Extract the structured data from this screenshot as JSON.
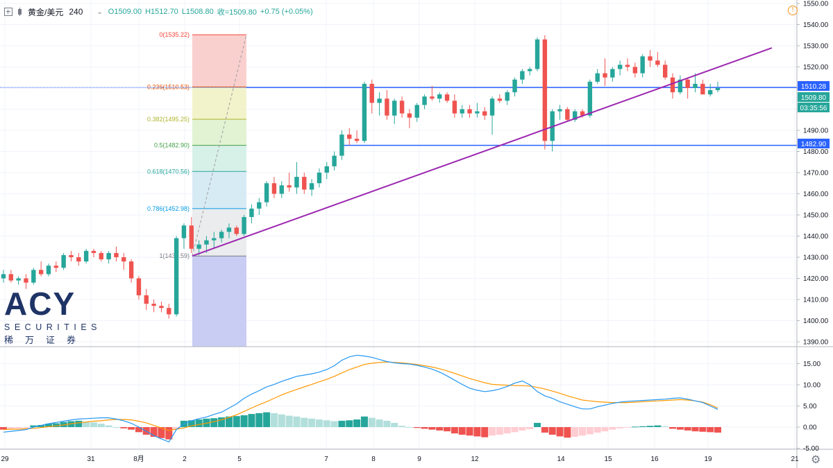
{
  "header": {
    "symbol": "黄金/美元",
    "interval": "240",
    "open": "O1509.00",
    "high": "H1512.70",
    "low": "L1508.80",
    "close": "收=1509.80",
    "change": "+0.75 (+0.05%)"
  },
  "price_axis": {
    "ticks": [
      "1550.00",
      "1540.00",
      "1530.00",
      "1520.00",
      "1510.00",
      "1500.00",
      "1490.00",
      "1480.00",
      "1470.00",
      "1460.00",
      "1450.00",
      "1440.00",
      "1430.00",
      "1420.00",
      "1410.00",
      "1400.00",
      "1390.00"
    ],
    "labels": [
      {
        "text": "1510.28",
        "color": "#2962ff"
      },
      {
        "text": "1509.80",
        "color": "#26a69a"
      },
      {
        "text": "03:35:56",
        "color": "#26a69a"
      },
      {
        "text": "1482.90",
        "color": "#2962ff"
      }
    ]
  },
  "macd_axis": {
    "ticks": [
      "15.00",
      "10.00",
      "5.00",
      "0.00",
      "-5.00"
    ]
  },
  "time_axis": {
    "ticks": [
      "29",
      "31",
      "8月",
      "2",
      "5",
      "7",
      "8",
      "9",
      "12",
      "14",
      "15",
      "16",
      "19",
      "21"
    ]
  },
  "fibonacci": {
    "levels": [
      {
        "label": "0(1535.22)",
        "price": 1535.22,
        "color": "#f44336"
      },
      {
        "label": "0.236(1510.53)",
        "price": 1510.53,
        "color": "#e65100"
      },
      {
        "label": "0.382(1495.25)",
        "price": 1495.25,
        "color": "#afb42b"
      },
      {
        "label": "0.5(1482.90)",
        "price": 1482.9,
        "color": "#43a047"
      },
      {
        "label": "0.618(1470.56)",
        "price": 1470.56,
        "color": "#26a69a"
      },
      {
        "label": "0.786(1452.98)",
        "price": 1452.98,
        "color": "#039be5"
      },
      {
        "label": "1(1430.59)",
        "price": 1430.59,
        "color": "#787b86"
      }
    ]
  },
  "horizontal_lines": [
    1510.28,
    1482.9
  ],
  "colors": {
    "up": "#26a69a",
    "down": "#ef5350",
    "trendline": "#9c27b0",
    "hline": "#2962ff",
    "macd": "#2196f3",
    "signal": "#ff9800"
  },
  "logo": {
    "brand": "ACY",
    "line1": "SECURITIES",
    "line2": "稀万证券"
  },
  "icons": {
    "warning": "warning-icon",
    "settings": "gear-icon"
  },
  "chart_data": {
    "type": "candlestick",
    "candles": [
      [
        1420,
        1424,
        1418,
        1422
      ],
      [
        1422,
        1424,
        1418,
        1419
      ],
      [
        1419,
        1421,
        1417,
        1420
      ],
      [
        1420,
        1422,
        1415,
        1418
      ],
      [
        1418,
        1425,
        1417,
        1424
      ],
      [
        1424,
        1428,
        1421,
        1422
      ],
      [
        1422,
        1427,
        1421,
        1426
      ],
      [
        1426,
        1428,
        1423,
        1425
      ],
      [
        1425,
        1432,
        1424,
        1431
      ],
      [
        1431,
        1433,
        1428,
        1430
      ],
      [
        1430,
        1432,
        1426,
        1428
      ],
      [
        1428,
        1434,
        1427,
        1433
      ],
      [
        1433,
        1434,
        1430,
        1432
      ],
      [
        1432,
        1433,
        1428,
        1429
      ],
      [
        1429,
        1433,
        1427,
        1432
      ],
      [
        1432,
        1435,
        1428,
        1430
      ],
      [
        1430,
        1432,
        1424,
        1428
      ],
      [
        1428,
        1429,
        1418,
        1420
      ],
      [
        1420,
        1421,
        1410,
        1412
      ],
      [
        1412,
        1415,
        1405,
        1408
      ],
      [
        1408,
        1410,
        1404,
        1407
      ],
      [
        1407,
        1409,
        1404,
        1406
      ],
      [
        1406,
        1408,
        1401,
        1403
      ],
      [
        1403,
        1440,
        1402,
        1439
      ],
      [
        1439,
        1446,
        1434,
        1445
      ],
      [
        1445,
        1449,
        1432,
        1434
      ],
      [
        1434,
        1438,
        1431,
        1436
      ],
      [
        1436,
        1440,
        1432,
        1438
      ],
      [
        1438,
        1442,
        1434,
        1439
      ],
      [
        1439,
        1443,
        1437,
        1442
      ],
      [
        1442,
        1446,
        1439,
        1444
      ],
      [
        1444,
        1445,
        1440,
        1441
      ],
      [
        1441,
        1450,
        1440,
        1449
      ],
      [
        1449,
        1455,
        1446,
        1453
      ],
      [
        1453,
        1458,
        1450,
        1456
      ],
      [
        1456,
        1466,
        1454,
        1465
      ],
      [
        1465,
        1468,
        1458,
        1460
      ],
      [
        1460,
        1466,
        1458,
        1464
      ],
      [
        1464,
        1470,
        1461,
        1463
      ],
      [
        1463,
        1475,
        1460,
        1468
      ],
      [
        1468,
        1470,
        1460,
        1462
      ],
      [
        1462,
        1467,
        1459,
        1465
      ],
      [
        1465,
        1472,
        1463,
        1470
      ],
      [
        1470,
        1475,
        1467,
        1473
      ],
      [
        1473,
        1480,
        1471,
        1478
      ],
      [
        1478,
        1490,
        1476,
        1488
      ],
      [
        1488,
        1491,
        1483,
        1486
      ],
      [
        1486,
        1490,
        1484,
        1485
      ],
      [
        1485,
        1513,
        1484,
        1512
      ],
      [
        1512,
        1514,
        1498,
        1503
      ],
      [
        1503,
        1508,
        1497,
        1505
      ],
      [
        1505,
        1509,
        1495,
        1497
      ],
      [
        1497,
        1505,
        1493,
        1504
      ],
      [
        1504,
        1506,
        1496,
        1498
      ],
      [
        1498,
        1500,
        1491,
        1496
      ],
      [
        1496,
        1503,
        1494,
        1502
      ],
      [
        1502,
        1507,
        1500,
        1506
      ],
      [
        1506,
        1511,
        1504,
        1505
      ],
      [
        1505,
        1508,
        1503,
        1507
      ],
      [
        1507,
        1508,
        1503,
        1504
      ],
      [
        1504,
        1507,
        1496,
        1498
      ],
      [
        1498,
        1502,
        1496,
        1500
      ],
      [
        1500,
        1502,
        1496,
        1498
      ],
      [
        1498,
        1503,
        1496,
        1499
      ],
      [
        1499,
        1501,
        1495,
        1497
      ],
      [
        1497,
        1506,
        1488,
        1505
      ],
      [
        1505,
        1507,
        1503,
        1504
      ],
      [
        1504,
        1509,
        1502,
        1508
      ],
      [
        1508,
        1515,
        1506,
        1514
      ],
      [
        1514,
        1519,
        1512,
        1518
      ],
      [
        1518,
        1520,
        1516,
        1519
      ],
      [
        1519,
        1534,
        1518,
        1533
      ],
      [
        1533,
        1535,
        1481,
        1485
      ],
      [
        1485,
        1500,
        1480,
        1499
      ],
      [
        1499,
        1502,
        1495,
        1500
      ],
      [
        1500,
        1501,
        1494,
        1495
      ],
      [
        1495,
        1500,
        1494,
        1499
      ],
      [
        1499,
        1500,
        1496,
        1497
      ],
      [
        1497,
        1514,
        1496,
        1513
      ],
      [
        1513,
        1519,
        1512,
        1517
      ],
      [
        1517,
        1524,
        1511,
        1515
      ],
      [
        1515,
        1520,
        1513,
        1519
      ],
      [
        1519,
        1523,
        1516,
        1521
      ],
      [
        1521,
        1524,
        1518,
        1520
      ],
      [
        1520,
        1522,
        1515,
        1517
      ],
      [
        1517,
        1526,
        1515,
        1525
      ],
      [
        1525,
        1528,
        1520,
        1523
      ],
      [
        1523,
        1527,
        1520,
        1521
      ],
      [
        1521,
        1523,
        1514,
        1515
      ],
      [
        1515,
        1517,
        1505,
        1508
      ],
      [
        1508,
        1516,
        1507,
        1514
      ],
      [
        1514,
        1515,
        1505,
        1510
      ],
      [
        1510,
        1517,
        1508,
        1512
      ],
      [
        1512,
        1514,
        1507,
        1507
      ],
      [
        1507,
        1512,
        1506,
        1509
      ],
      [
        1509,
        1513,
        1508,
        1510
      ]
    ],
    "macd": [
      -0.6,
      -0.5,
      -0.3,
      -0.2,
      0.4,
      0.5,
      0.8,
      0.9,
      1.2,
      1.4,
      1.5,
      1.3,
      1.1,
      0.8,
      0.4,
      0.0,
      -0.3,
      -0.6,
      -1.2,
      -1.8,
      -2.3,
      -2.6,
      -2.9,
      -0.5,
      1.5,
      1.6,
      1.8,
      2.0,
      2.1,
      2.3,
      2.5,
      2.6,
      2.8,
      3.1,
      3.3,
      3.5,
      3.3,
      3.0,
      2.7,
      2.5,
      2.2,
      2.0,
      1.8,
      1.6,
      1.4,
      1.5,
      1.6,
      1.8,
      2.5,
      2.2,
      1.8,
      1.5,
      1.0,
      0.3,
      0.0,
      -0.2,
      -0.4,
      -0.6,
      -0.8,
      -1.0,
      -1.5,
      -1.8,
      -2.0,
      -2.2,
      -2.4,
      -2.0,
      -1.8,
      -1.5,
      -1.2,
      -0.8,
      -0.5,
      1.0,
      -1.3,
      -1.8,
      -2.2,
      -2.5,
      -2.3,
      -2.0,
      -1.7,
      -1.3,
      -1.0,
      -0.6,
      -0.3,
      -0.1,
      0.1,
      0.2,
      0.3,
      0.4,
      0.2,
      -0.4,
      -0.6,
      -0.8,
      -1.0,
      -1.1,
      -1.2,
      -1.3
    ],
    "macd_line": [
      -1.2,
      -1.0,
      -0.8,
      -0.6,
      0.0,
      0.4,
      0.8,
      1.1,
      1.4,
      1.7,
      1.9,
      2.0,
      2.1,
      2.2,
      2.2,
      1.9,
      1.5,
      0.9,
      0.0,
      -1.0,
      -2.0,
      -2.8,
      -3.5,
      -0.6,
      0.8,
      1.5,
      2.0,
      2.4,
      3.0,
      3.5,
      4.5,
      5.5,
      6.8,
      7.8,
      8.6,
      9.5,
      10.1,
      10.8,
      11.4,
      12.0,
      12.3,
      12.6,
      13.0,
      13.6,
      14.5,
      15.8,
      16.6,
      17.0,
      16.8,
      16.5,
      16.0,
      15.5,
      15.2,
      15.0,
      14.9,
      14.6,
      14.2,
      13.7,
      13.0,
      12.1,
      11.1,
      10.1,
      9.2,
      8.7,
      8.4,
      8.6,
      9.0,
      9.6,
      10.4,
      10.9,
      10.0,
      8.4,
      7.4,
      6.8,
      6.0,
      5.4,
      4.8,
      4.3,
      4.3,
      4.8,
      5.2,
      5.6,
      5.9,
      6.1,
      6.2,
      6.3,
      6.4,
      6.5,
      6.6,
      6.8,
      6.9,
      6.6,
      6.2,
      5.8,
      5.0,
      4.2
    ],
    "signal_line": [
      -0.6,
      -0.5,
      -0.5,
      -0.4,
      -0.3,
      -0.1,
      0.1,
      0.3,
      0.5,
      0.8,
      1.0,
      1.2,
      1.4,
      1.5,
      1.7,
      1.8,
      1.8,
      1.7,
      1.4,
      1.0,
      0.4,
      -0.2,
      -0.8,
      -0.5,
      -0.2,
      0.3,
      0.6,
      0.9,
      1.3,
      1.7,
      2.3,
      2.9,
      3.7,
      4.5,
      5.3,
      6.0,
      6.8,
      7.6,
      8.3,
      8.9,
      9.5,
      10.1,
      10.7,
      11.3,
      12.0,
      12.8,
      13.6,
      14.2,
      14.8,
      15.1,
      15.3,
      15.4,
      15.3,
      15.2,
      15.0,
      14.8,
      14.5,
      14.2,
      13.8,
      13.3,
      12.7,
      12.1,
      11.5,
      11.0,
      10.5,
      10.1,
      10.0,
      9.9,
      9.8,
      9.8,
      9.7,
      9.4,
      9.0,
      8.5,
      8.0,
      7.4,
      6.9,
      6.4,
      6.2,
      6.0,
      5.9,
      5.8,
      5.8,
      5.8,
      5.9,
      6.0,
      6.1,
      6.2,
      6.3,
      6.4,
      6.5,
      6.4,
      6.2,
      5.9,
      5.3,
      4.5
    ]
  }
}
